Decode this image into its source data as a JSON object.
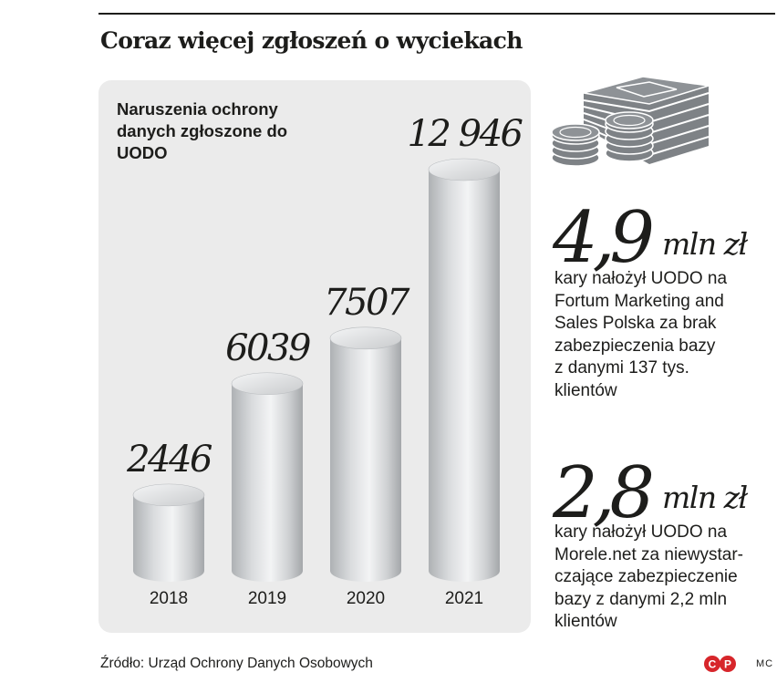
{
  "headline": "Coraz więcej zgłoszeń o wyciekach",
  "chart_data": {
    "type": "bar",
    "title": "Naruszenia ochrony danych zgłoszone do UODO",
    "categories": [
      "2018",
      "2019",
      "2020",
      "2021"
    ],
    "values": [
      2446,
      6039,
      7507,
      12946
    ],
    "value_labels": [
      "2446",
      "6039",
      "7507",
      "12 946"
    ],
    "bar_style": "cylinder",
    "ylim": [
      0,
      12946
    ],
    "grid": false,
    "legend": "none",
    "colors": {
      "panel": "#ebebeb",
      "cylinder_light": "#f3f4f5",
      "cylinder_dark": "#a4a7aa"
    }
  },
  "facts": [
    {
      "amount": "4,9",
      "unit": "mln zł",
      "text": "kary nałożył UODO na\nFortum Marketing and\nSales Polska za brak\nzabezpieczenia bazy\nz danymi 137 tys.\nklientów"
    },
    {
      "amount": "2,8",
      "unit": "mln zł",
      "text": "kary nałożył UODO na\nMorele.net za niewystar-\nczające zabezpieczenie\nbazy z danymi 2,2 mln\nklientów"
    }
  ],
  "icon": "money-stack-icon",
  "source": "Źródło: Urząd Ochrony Danych Osobowych",
  "logo_text": "CP",
  "author": "MC"
}
